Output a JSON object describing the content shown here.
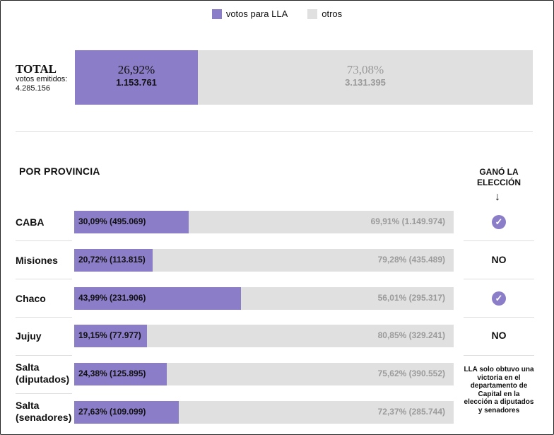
{
  "legend": {
    "lla": "votos para LLA",
    "otros": "otros",
    "lla_color": "#8b7dc8",
    "otros_color": "#e0e0e0"
  },
  "total": {
    "title": "TOTAL",
    "sub_label": "votos emitidos:",
    "emitted": "4.285.156",
    "lla_pct": "26,92%",
    "lla_votes": "1.153.761",
    "otros_pct": "73,08%",
    "otros_votes": "3.131.395"
  },
  "section_title": "POR PROVINCIA",
  "won_header": "GANÓ LA ELECCIÓN",
  "note": "LLA solo obtuvo una victoria en el departamento de Capital en la elección a diputados y senadores",
  "chart_data": {
    "type": "bar",
    "stacked": true,
    "horizontal": true,
    "categories": [
      "CABA",
      "Misiones",
      "Chaco",
      "Jujuy",
      "Salta (diputados)",
      "Salta (senadores)"
    ],
    "series": [
      {
        "name": "votos para LLA",
        "values": [
          30.09,
          20.72,
          43.99,
          19.15,
          24.38,
          27.63
        ]
      },
      {
        "name": "otros",
        "values": [
          69.91,
          79.28,
          56.01,
          80.85,
          75.62,
          72.37
        ]
      }
    ],
    "lla_labels": [
      "30,09% (495.069)",
      "20,72% (113.815)",
      "43,99% (231.906)",
      "19,15% (77.977)",
      "24,38% (125.895)",
      "27,63% (109.099)"
    ],
    "otros_labels": [
      "69,91% (1.149.974)",
      "79,28% (435.489)",
      "56,01% (295.317)",
      "80,85% (329.241)",
      "75,62% (390.552)",
      "72,37% (285.744)"
    ],
    "won": [
      "yes",
      "NO",
      "yes",
      "NO",
      "note",
      "note"
    ]
  }
}
